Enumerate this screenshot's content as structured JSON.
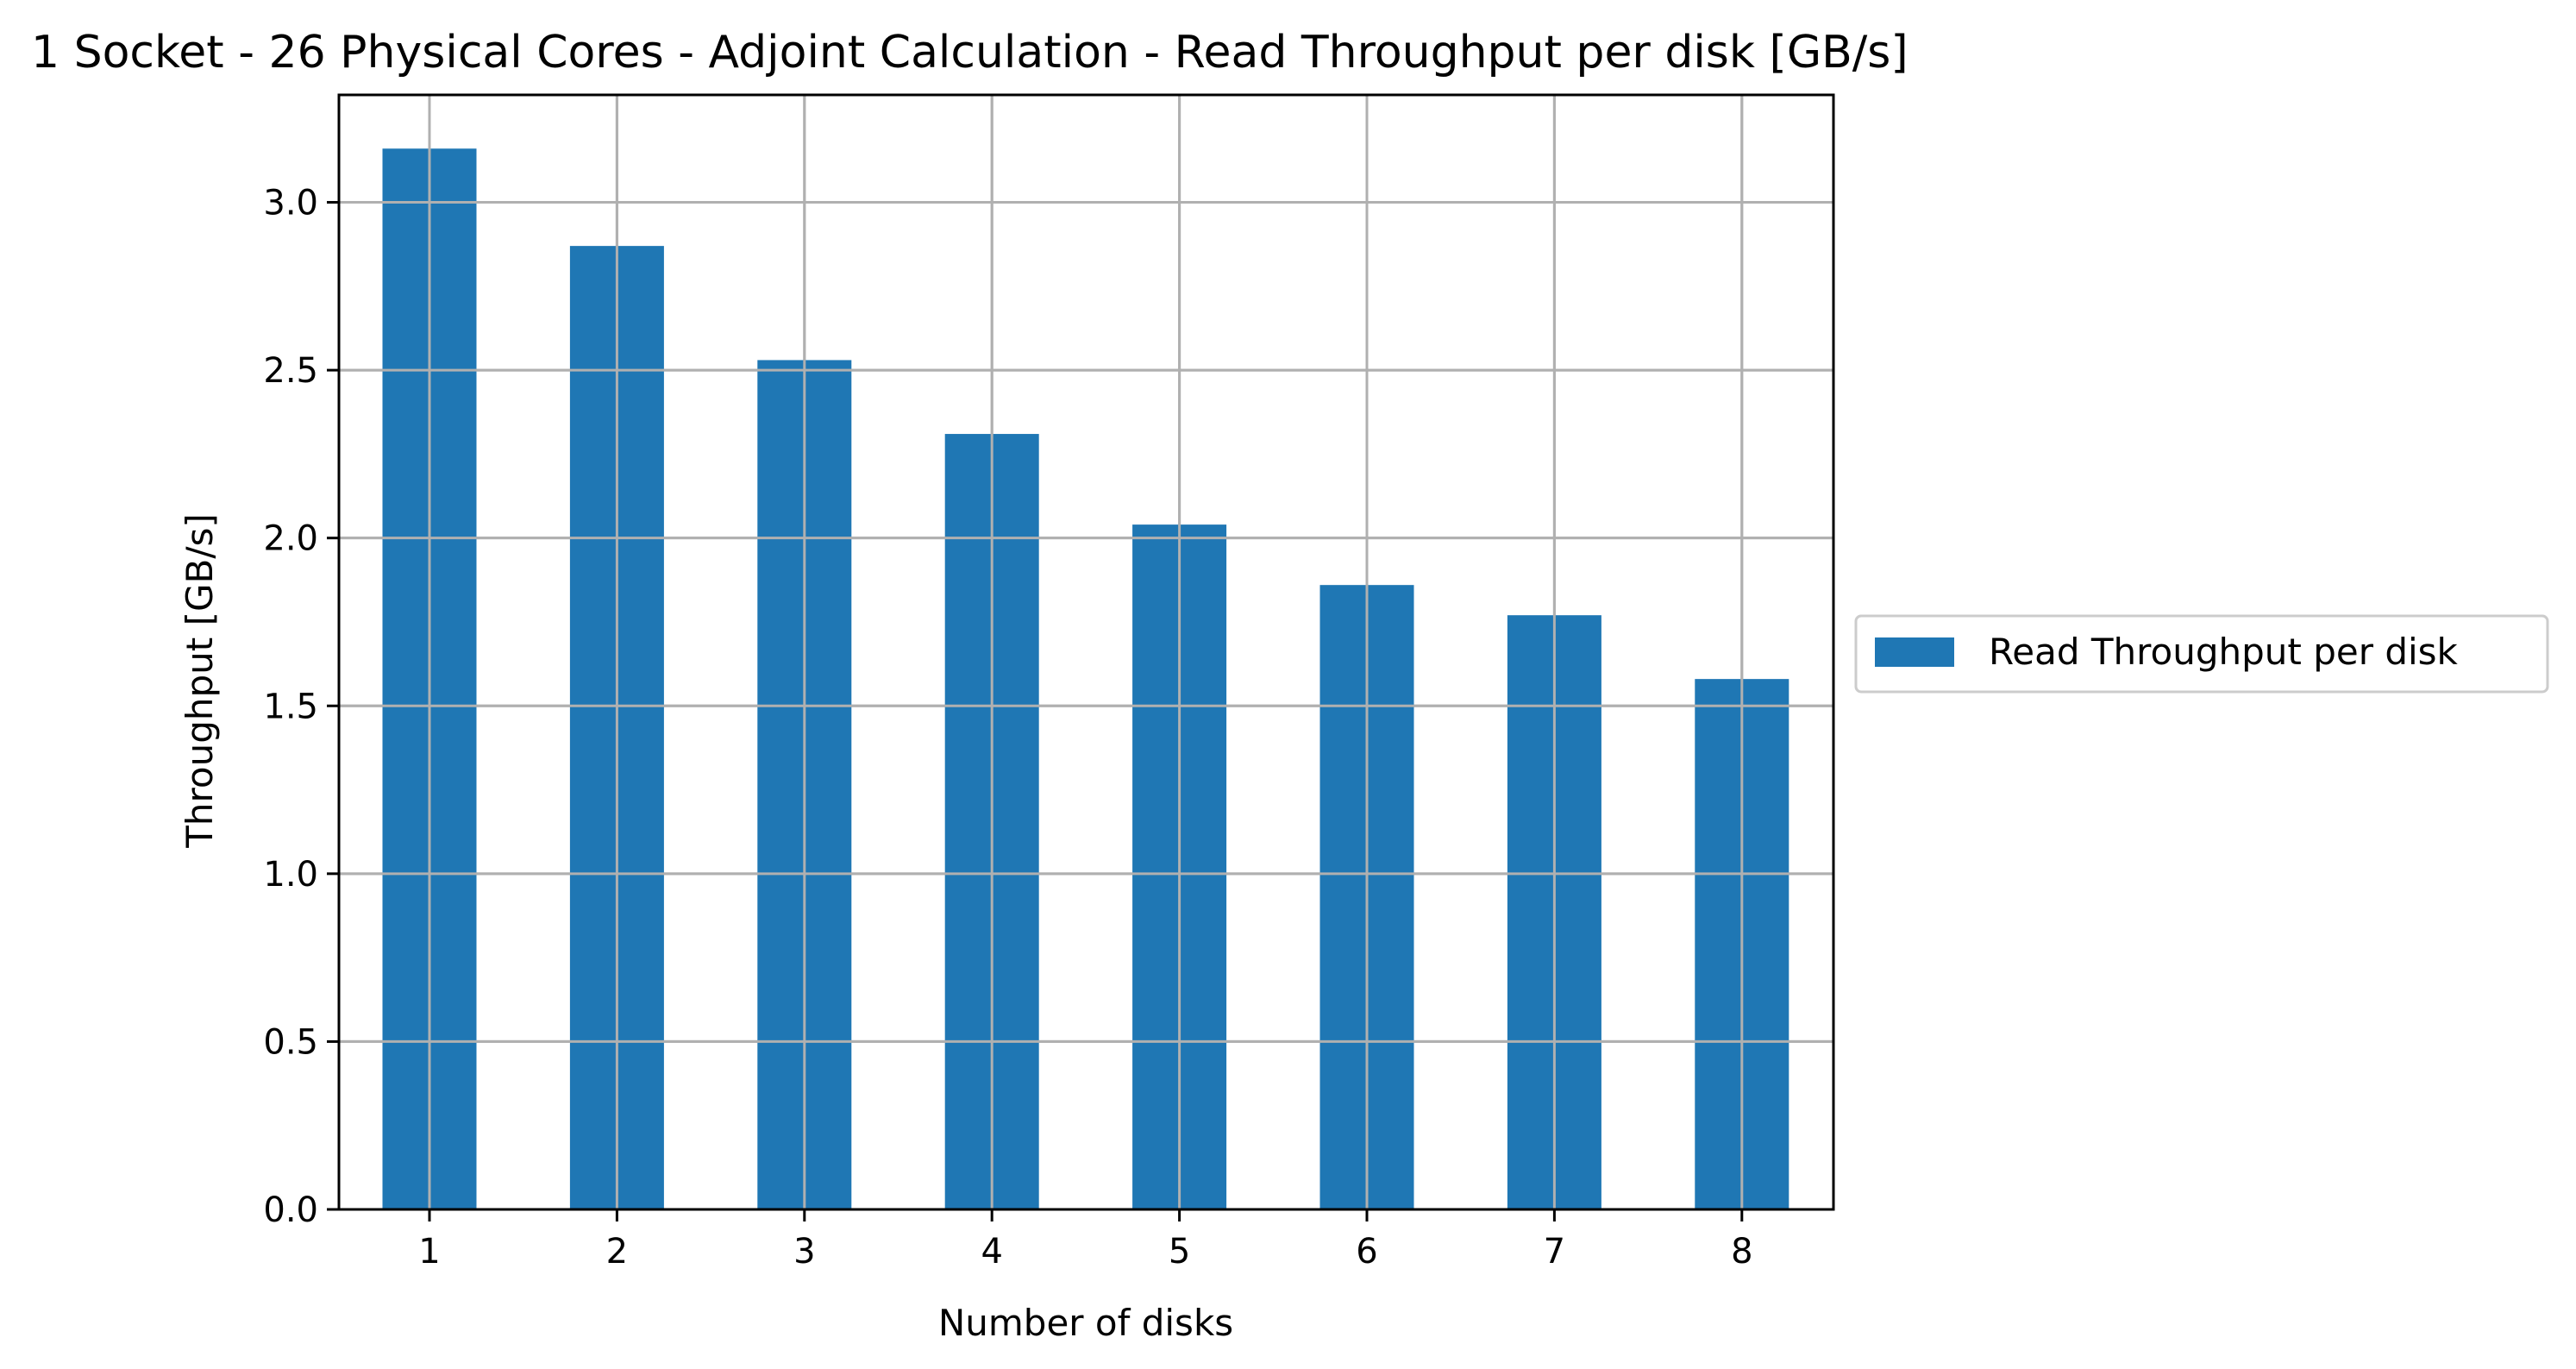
{
  "chart_data": {
    "type": "bar",
    "title": "1 Socket - 26 Physical Cores - Adjoint Calculation - Read Throughput per disk [GB/s]",
    "xlabel": "Number of disks",
    "ylabel": "Throughput [GB/s]",
    "categories": [
      "1",
      "2",
      "3",
      "4",
      "5",
      "6",
      "7",
      "8"
    ],
    "series": [
      {
        "name": "Read Throughput per disk",
        "values": [
          3.16,
          2.87,
          2.53,
          2.31,
          2.04,
          1.86,
          1.77,
          1.58
        ],
        "color": "#1f77b4"
      }
    ],
    "ylim": [
      0,
      3.32
    ],
    "yticks": [
      "0.0",
      "0.5",
      "1.0",
      "1.5",
      "2.0",
      "2.5",
      "3.0"
    ],
    "grid": true,
    "legend_position": "outside right, center"
  }
}
